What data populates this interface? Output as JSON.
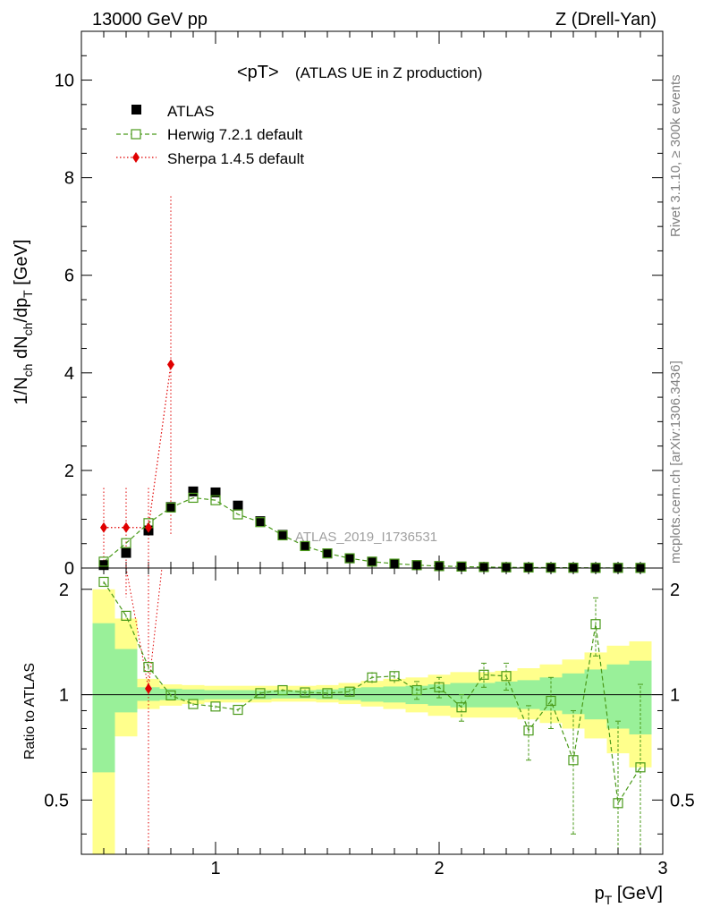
{
  "header": {
    "left": "13000 GeV pp",
    "right": "Z (Drell-Yan)"
  },
  "plot_title": {
    "main": "<pT>",
    "sub": "(ATLAS UE in Z production)"
  },
  "watermark": "ATLAS_2019_I1736531",
  "side_labels": {
    "rivet": "Rivet 3.1.10, ≥ 300k events",
    "mcplots": "mcplots.cern.ch [arXiv:1306.3436]"
  },
  "colors": {
    "atlas": "#000000",
    "herwig": "#4a9a1a",
    "sherpa": "#e00000",
    "band_inner": "#99f099",
    "band_outer": "#ffff8c"
  },
  "chart_data": [
    {
      "type": "scatter",
      "panel": "main",
      "ylabel": "1/N_ch dN_ch/dp_T [GeV]",
      "xlim": [
        0.4,
        3.0
      ],
      "ylim": [
        0,
        11
      ],
      "yticks": [
        0,
        2,
        4,
        6,
        8,
        10
      ],
      "legend": "top-left",
      "series": [
        {
          "name": "ATLAS",
          "style": "marker-square-filled",
          "x": [
            0.5,
            0.6,
            0.7,
            0.8,
            0.9,
            1.0,
            1.1,
            1.2,
            1.3,
            1.4,
            1.5,
            1.6,
            1.7,
            1.8,
            1.9,
            2.0,
            2.1,
            2.2,
            2.3,
            2.4,
            2.5,
            2.6,
            2.7,
            2.8,
            2.9
          ],
          "y": [
            0.06,
            0.31,
            0.77,
            1.25,
            1.57,
            1.55,
            1.28,
            0.96,
            0.68,
            0.45,
            0.3,
            0.2,
            0.13,
            0.09,
            0.06,
            0.04,
            0.03,
            0.02,
            0.015,
            0.01,
            0.008,
            0.006,
            0.004,
            0.003,
            0.002
          ]
        },
        {
          "name": "Herwig 7.2.1 default",
          "style": "marker-square-open-dashed",
          "x": [
            0.5,
            0.6,
            0.7,
            0.8,
            0.9,
            1.0,
            1.1,
            1.2,
            1.3,
            1.4,
            1.5,
            1.6,
            1.7,
            1.8,
            1.9,
            2.0,
            2.1,
            2.2,
            2.3,
            2.4,
            2.5,
            2.6,
            2.7,
            2.8,
            2.9
          ],
          "y": [
            0.13,
            0.51,
            0.92,
            1.24,
            1.44,
            1.39,
            1.1,
            0.94,
            0.67,
            0.45,
            0.3,
            0.2,
            0.13,
            0.09,
            0.06,
            0.04,
            0.03,
            0.02,
            0.015,
            0.01,
            0.008,
            0.006,
            0.004,
            0.003,
            0.002
          ]
        },
        {
          "name": "Sherpa 1.4.5 default",
          "style": "marker-diamond-dotted",
          "x": [
            0.5,
            0.6,
            0.7,
            0.8
          ],
          "y": [
            0.83,
            0.83,
            0.83,
            4.17
          ],
          "yerr_low": [
            0.83,
            0.83,
            0.83,
            3.47
          ],
          "yerr_high": [
            0.85,
            0.85,
            0.85,
            3.45
          ]
        }
      ]
    },
    {
      "type": "scatter",
      "panel": "ratio",
      "ylabel": "Ratio to ATLAS",
      "xlabel": "p_T [GeV]",
      "xlim": [
        0.4,
        3.0
      ],
      "ylim": [
        0.35,
        2.3
      ],
      "yticks": [
        0.5,
        1,
        2
      ],
      "xticks": [
        1,
        2,
        3
      ],
      "bands": {
        "edges": [
          0.45,
          0.55,
          0.65,
          0.75,
          0.85,
          0.95,
          1.05,
          1.15,
          1.25,
          1.35,
          1.45,
          1.55,
          1.65,
          1.75,
          1.85,
          1.95,
          2.05,
          2.15,
          2.25,
          2.35,
          2.45,
          2.55,
          2.65,
          2.75,
          2.85,
          2.95
        ],
        "inner_low": [
          0.6,
          0.89,
          0.96,
          0.965,
          0.965,
          0.97,
          0.97,
          0.97,
          0.975,
          0.975,
          0.97,
          0.965,
          0.955,
          0.95,
          0.94,
          0.93,
          0.92,
          0.92,
          0.92,
          0.91,
          0.9,
          0.88,
          0.85,
          0.8,
          0.77
        ],
        "inner_high": [
          1.6,
          1.35,
          1.05,
          1.04,
          1.035,
          1.03,
          1.03,
          1.03,
          1.03,
          1.03,
          1.035,
          1.045,
          1.05,
          1.055,
          1.06,
          1.07,
          1.08,
          1.08,
          1.09,
          1.1,
          1.12,
          1.15,
          1.18,
          1.22,
          1.25
        ],
        "outer_low": [
          0.35,
          0.76,
          0.91,
          0.93,
          0.94,
          0.95,
          0.95,
          0.95,
          0.955,
          0.955,
          0.95,
          0.94,
          0.925,
          0.91,
          0.89,
          0.87,
          0.86,
          0.86,
          0.86,
          0.85,
          0.83,
          0.8,
          0.75,
          0.68,
          0.62
        ],
        "outer_high": [
          2.0,
          1.65,
          1.11,
          1.07,
          1.065,
          1.06,
          1.06,
          1.06,
          1.06,
          1.06,
          1.065,
          1.08,
          1.095,
          1.11,
          1.12,
          1.14,
          1.16,
          1.16,
          1.17,
          1.19,
          1.22,
          1.26,
          1.32,
          1.38,
          1.42
        ]
      },
      "reference_line": 1,
      "series": [
        {
          "name": "Herwig 7.2.1 default",
          "x": [
            0.5,
            0.6,
            0.7,
            0.8,
            0.9,
            1.0,
            1.1,
            1.2,
            1.3,
            1.4,
            1.5,
            1.6,
            1.7,
            1.8,
            1.9,
            2.0,
            2.1,
            2.2,
            2.3,
            2.4,
            2.5,
            2.6,
            2.7,
            2.8,
            2.9
          ],
          "y": [
            2.1,
            1.68,
            1.2,
            0.995,
            0.94,
            0.925,
            0.905,
            1.01,
            1.03,
            1.015,
            1.01,
            1.02,
            1.12,
            1.13,
            1.03,
            1.05,
            0.92,
            1.14,
            1.13,
            0.79,
            0.96,
            0.65,
            1.59,
            0.49,
            0.62
          ],
          "yerr": [
            0.03,
            0.02,
            0.02,
            0.01,
            0.01,
            0.01,
            0.01,
            0.01,
            0.01,
            0.02,
            0.02,
            0.03,
            0.04,
            0.05,
            0.06,
            0.07,
            0.08,
            0.09,
            0.1,
            0.14,
            0.16,
            0.25,
            0.3,
            0.35,
            0.45
          ]
        },
        {
          "name": "Sherpa 1.4.5 default",
          "x": [
            0.7
          ],
          "y": [
            1.04
          ]
        }
      ]
    }
  ]
}
